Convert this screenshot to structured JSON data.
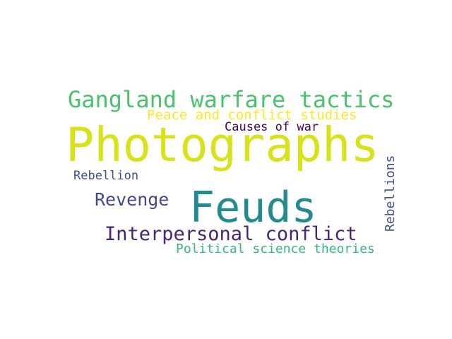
{
  "word_cloud": {
    "words": [
      {
        "id": "photographs",
        "text": "Photographs",
        "color": "#d8e219"
      },
      {
        "id": "gangland",
        "text": "Gangland warfare tactics",
        "color": "#4ac16d"
      },
      {
        "id": "peace",
        "text": "Peace and conflict studies",
        "color": "#fde725"
      },
      {
        "id": "causes",
        "text": "Causes of war",
        "color": "#440154"
      },
      {
        "id": "feuds",
        "text": "Feuds",
        "color": "#238a8d"
      },
      {
        "id": "rebellion",
        "text": "Rebellion",
        "color": "#3b528b"
      },
      {
        "id": "revenge",
        "text": "Revenge",
        "color": "#3e4a89"
      },
      {
        "id": "interpersonal",
        "text": "Interpersonal conflict",
        "color": "#482475"
      },
      {
        "id": "political",
        "text": "Political science theories",
        "color": "#35b779"
      },
      {
        "id": "rebellions",
        "text": "Rebellions",
        "color": "#3b528b"
      }
    ]
  }
}
